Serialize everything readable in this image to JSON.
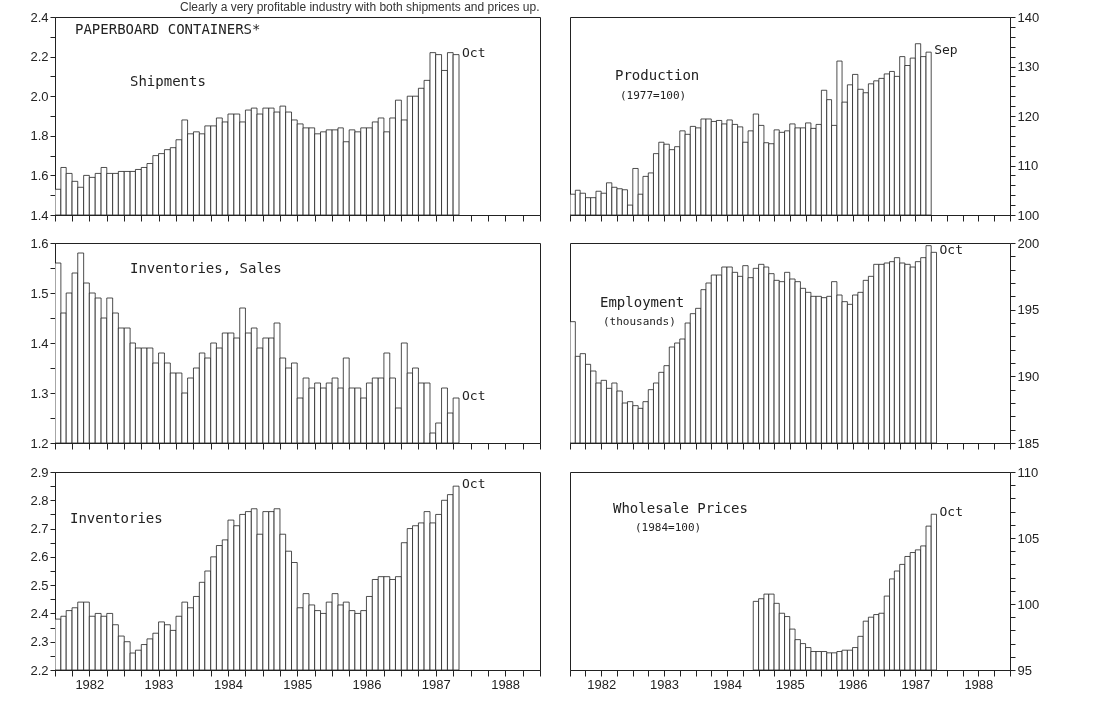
{
  "chart_data": [
    {
      "type": "bar",
      "title": "Shipments",
      "annotations": [
        "Clearly a very profitable industry with both shipments and prices up.",
        "PAPERBOARD CONTAINERS*",
        {
          "text": "Oct",
          "x": "1987-10",
          "y": 2.21
        }
      ],
      "color": "#ffffff",
      "x": [
        "1982-01",
        "1982-02",
        "1982-03",
        "1982-04",
        "1982-05",
        "1982-06",
        "1982-07",
        "1982-08",
        "1982-09",
        "1982-10",
        "1982-11",
        "1982-12",
        "1983-01",
        "1983-02",
        "1983-03",
        "1983-04",
        "1983-05",
        "1983-06",
        "1983-07",
        "1983-08",
        "1983-09",
        "1983-10",
        "1983-11",
        "1983-12",
        "1984-01",
        "1984-02",
        "1984-03",
        "1984-04",
        "1984-05",
        "1984-06",
        "1984-07",
        "1984-08",
        "1984-09",
        "1984-10",
        "1984-11",
        "1984-12",
        "1985-01",
        "1985-02",
        "1985-03",
        "1985-04",
        "1985-05",
        "1985-06",
        "1985-07",
        "1985-08",
        "1985-09",
        "1985-10",
        "1985-11",
        "1985-12",
        "1986-01",
        "1986-02",
        "1986-03",
        "1986-04",
        "1986-05",
        "1986-06",
        "1986-07",
        "1986-08",
        "1986-09",
        "1986-10",
        "1986-11",
        "1986-12",
        "1987-01",
        "1987-02",
        "1987-03",
        "1987-04",
        "1987-05",
        "1987-06",
        "1987-07",
        "1987-08",
        "1987-09",
        "1987-10"
      ],
      "values": [
        1.53,
        1.64,
        1.61,
        1.57,
        1.54,
        1.6,
        1.59,
        1.61,
        1.64,
        1.61,
        1.61,
        1.62,
        1.62,
        1.62,
        1.63,
        1.64,
        1.66,
        1.7,
        1.71,
        1.73,
        1.74,
        1.78,
        1.88,
        1.81,
        1.82,
        1.81,
        1.85,
        1.85,
        1.89,
        1.87,
        1.91,
        1.91,
        1.87,
        1.93,
        1.94,
        1.91,
        1.94,
        1.94,
        1.92,
        1.95,
        1.92,
        1.88,
        1.86,
        1.84,
        1.84,
        1.81,
        1.82,
        1.83,
        1.83,
        1.84,
        1.77,
        1.83,
        1.82,
        1.84,
        1.84,
        1.87,
        1.89,
        1.82,
        1.89,
        1.98,
        1.88,
        2.0,
        2.0,
        2.04,
        2.08,
        2.22,
        2.21,
        2.13,
        2.22,
        2.21
      ],
      "xlim": [
        "1982-01",
        "1989-01"
      ],
      "xticks": [
        {
          "value": "1982-01",
          "label": null
        },
        {
          "value": "1982-04",
          "label": null
        },
        {
          "value": "1982-07",
          "label": null
        },
        {
          "value": "1982-10",
          "label": null
        },
        {
          "value": "1983-01",
          "label": null
        },
        {
          "value": "1983-04",
          "label": null
        },
        {
          "value": "1983-07",
          "label": null
        },
        {
          "value": "1983-10",
          "label": null
        },
        {
          "value": "1984-01",
          "label": null
        },
        {
          "value": "1984-04",
          "label": null
        },
        {
          "value": "1984-07",
          "label": null
        },
        {
          "value": "1984-10",
          "label": null
        },
        {
          "value": "1985-01",
          "label": null
        },
        {
          "value": "1985-04",
          "label": null
        },
        {
          "value": "1985-07",
          "label": null
        },
        {
          "value": "1985-10",
          "label": null
        },
        {
          "value": "1986-01",
          "label": null
        },
        {
          "value": "1986-04",
          "label": null
        },
        {
          "value": "1986-07",
          "label": null
        },
        {
          "value": "1986-10",
          "label": null
        },
        {
          "value": "1987-01",
          "label": null
        },
        {
          "value": "1987-04",
          "label": null
        },
        {
          "value": "1987-07",
          "label": null
        },
        {
          "value": "1987-10",
          "label": null
        },
        {
          "value": "1988-01",
          "label": null
        },
        {
          "value": "1988-04",
          "label": null
        },
        {
          "value": "1988-07",
          "label": null
        },
        {
          "value": "1988-10",
          "label": null
        },
        {
          "value": "1989-01",
          "label": null
        }
      ],
      "ylim": [
        1.4,
        2.4
      ],
      "yticks": [
        1.4,
        {
          "value": 1.5,
          "label": null
        },
        1.6,
        {
          "value": 1.7,
          "label": null
        },
        1.8,
        {
          "value": 1.9,
          "label": null
        },
        {
          "value": 2,
          "label": "2.0"
        },
        {
          "value": 2.1,
          "label": null
        },
        2.2,
        {
          "value": 2.3,
          "label": null
        },
        2.4
      ],
      "tick_labels": "y"
    },
    {
      "type": "bar",
      "title": "Production",
      "subtitle": "(1977=100)",
      "annotations": [
        {
          "text": "Sep",
          "x": "1987-09",
          "y": 132.9
        }
      ],
      "color": "#ffffff",
      "x": [
        "1982-01",
        "1982-02",
        "1982-03",
        "1982-04",
        "1982-05",
        "1982-06",
        "1982-07",
        "1982-08",
        "1982-09",
        "1982-10",
        "1982-11",
        "1982-12",
        "1983-01",
        "1983-02",
        "1983-03",
        "1983-04",
        "1983-05",
        "1983-06",
        "1983-07",
        "1983-08",
        "1983-09",
        "1983-10",
        "1983-11",
        "1983-12",
        "1984-01",
        "1984-02",
        "1984-03",
        "1984-04",
        "1984-05",
        "1984-06",
        "1984-07",
        "1984-08",
        "1984-09",
        "1984-10",
        "1984-11",
        "1984-12",
        "1985-01",
        "1985-02",
        "1985-03",
        "1985-04",
        "1985-05",
        "1985-06",
        "1985-07",
        "1985-08",
        "1985-09",
        "1985-10",
        "1985-11",
        "1985-12",
        "1986-01",
        "1986-02",
        "1986-03",
        "1986-04",
        "1986-05",
        "1986-06",
        "1986-07",
        "1986-08",
        "1986-09",
        "1986-10",
        "1986-11",
        "1986-12",
        "1987-01",
        "1987-02",
        "1987-03",
        "1987-04",
        "1987-05",
        "1987-06",
        "1987-07",
        "1987-08",
        "1987-09"
      ],
      "values": [
        104.2,
        105.0,
        104.4,
        103.5,
        103.5,
        104.8,
        104.4,
        106.5,
        105.6,
        105.3,
        105.1,
        102.0,
        109.4,
        104.2,
        107.8,
        108.5,
        112.4,
        114.7,
        114.3,
        113.2,
        113.8,
        117.0,
        116.3,
        117.9,
        117.6,
        119.4,
        119.4,
        118.9,
        119.1,
        118.4,
        119.2,
        118.3,
        117.8,
        114.7,
        117.0,
        120.4,
        118.1,
        114.6,
        114.4,
        117.2,
        116.7,
        117.0,
        118.4,
        117.6,
        117.6,
        118.6,
        117.5,
        118.3,
        125.2,
        123.3,
        118.1,
        131.1,
        122.8,
        126.3,
        128.4,
        125.4,
        124.7,
        126.5,
        127.1,
        127.6,
        128.5,
        129.0,
        128.0,
        132.0,
        130.2,
        131.7,
        134.6,
        132.0,
        132.9
      ],
      "xlim": [
        "1982-01",
        "1989-01"
      ],
      "xticks": [
        {
          "value": "1982-01",
          "label": null
        },
        {
          "value": "1982-04",
          "label": null
        },
        {
          "value": "1982-07",
          "label": null
        },
        {
          "value": "1982-10",
          "label": null
        },
        {
          "value": "1983-01",
          "label": null
        },
        {
          "value": "1983-04",
          "label": null
        },
        {
          "value": "1983-07",
          "label": null
        },
        {
          "value": "1983-10",
          "label": null
        },
        {
          "value": "1984-01",
          "label": null
        },
        {
          "value": "1984-04",
          "label": null
        },
        {
          "value": "1984-07",
          "label": null
        },
        {
          "value": "1984-10",
          "label": null
        },
        {
          "value": "1985-01",
          "label": null
        },
        {
          "value": "1985-04",
          "label": null
        },
        {
          "value": "1985-07",
          "label": null
        },
        {
          "value": "1985-10",
          "label": null
        },
        {
          "value": "1986-01",
          "label": null
        },
        {
          "value": "1986-04",
          "label": null
        },
        {
          "value": "1986-07",
          "label": null
        },
        {
          "value": "1986-10",
          "label": null
        },
        {
          "value": "1987-01",
          "label": null
        },
        {
          "value": "1987-04",
          "label": null
        },
        {
          "value": "1987-07",
          "label": null
        },
        {
          "value": "1987-10",
          "label": null
        },
        {
          "value": "1988-01",
          "label": null
        },
        {
          "value": "1988-04",
          "label": null
        },
        {
          "value": "1988-07",
          "label": null
        },
        {
          "value": "1988-10",
          "label": null
        },
        {
          "value": "1989-01",
          "label": null
        }
      ],
      "ylim": [
        100,
        140
      ],
      "yticks": [
        100,
        {
          "value": 102,
          "label": null
        },
        {
          "value": 104,
          "label": null
        },
        {
          "value": 106,
          "label": null
        },
        {
          "value": 108,
          "label": null
        },
        110,
        {
          "value": 112,
          "label": null
        },
        {
          "value": 114,
          "label": null
        },
        {
          "value": 116,
          "label": null
        },
        {
          "value": 118,
          "label": null
        },
        120,
        {
          "value": 122,
          "label": null
        },
        {
          "value": 124,
          "label": null
        },
        {
          "value": 126,
          "label": null
        },
        {
          "value": 128,
          "label": null
        },
        130,
        {
          "value": 132,
          "label": null
        },
        {
          "value": 134,
          "label": null
        },
        {
          "value": 136,
          "label": null
        },
        {
          "value": 138,
          "label": null
        },
        140
      ],
      "tick_labels": "y"
    },
    {
      "type": "bar",
      "title": "Inventories, Sales",
      "annotations": [
        {
          "text": "Oct",
          "x": "1987-10",
          "y": 1.29
        }
      ],
      "color": "#ffffff",
      "x": [
        "1982-01",
        "1982-02",
        "1982-03",
        "1982-04",
        "1982-05",
        "1982-06",
        "1982-07",
        "1982-08",
        "1982-09",
        "1982-10",
        "1982-11",
        "1982-12",
        "1983-01",
        "1983-02",
        "1983-03",
        "1983-04",
        "1983-05",
        "1983-06",
        "1983-07",
        "1983-08",
        "1983-09",
        "1983-10",
        "1983-11",
        "1983-12",
        "1984-01",
        "1984-02",
        "1984-03",
        "1984-04",
        "1984-05",
        "1984-06",
        "1984-07",
        "1984-08",
        "1984-09",
        "1984-10",
        "1984-11",
        "1984-12",
        "1985-01",
        "1985-02",
        "1985-03",
        "1985-04",
        "1985-05",
        "1985-06",
        "1985-07",
        "1985-08",
        "1985-09",
        "1985-10",
        "1985-11",
        "1985-12",
        "1986-01",
        "1986-02",
        "1986-03",
        "1986-04",
        "1986-05",
        "1986-06",
        "1986-07",
        "1986-08",
        "1986-09",
        "1986-10",
        "1986-11",
        "1986-12",
        "1987-01",
        "1987-02",
        "1987-03",
        "1987-04",
        "1987-05",
        "1987-06",
        "1987-07",
        "1987-08",
        "1987-09",
        "1987-10"
      ],
      "values": [
        1.56,
        1.46,
        1.5,
        1.54,
        1.58,
        1.52,
        1.5,
        1.49,
        1.45,
        1.49,
        1.46,
        1.43,
        1.43,
        1.4,
        1.39,
        1.39,
        1.39,
        1.36,
        1.38,
        1.36,
        1.34,
        1.34,
        1.3,
        1.33,
        1.35,
        1.38,
        1.37,
        1.4,
        1.39,
        1.42,
        1.42,
        1.41,
        1.47,
        1.42,
        1.43,
        1.39,
        1.41,
        1.41,
        1.44,
        1.37,
        1.35,
        1.36,
        1.29,
        1.33,
        1.31,
        1.32,
        1.31,
        1.32,
        1.33,
        1.31,
        1.37,
        1.31,
        1.31,
        1.29,
        1.32,
        1.33,
        1.33,
        1.38,
        1.33,
        1.27,
        1.4,
        1.34,
        1.35,
        1.32,
        1.32,
        1.22,
        1.24,
        1.31,
        1.26,
        1.29
      ],
      "xlim": [
        "1982-01",
        "1989-01"
      ],
      "xticks": [
        {
          "value": "1982-01",
          "label": null
        },
        {
          "value": "1982-04",
          "label": null
        },
        {
          "value": "1982-07",
          "label": null
        },
        {
          "value": "1982-10",
          "label": null
        },
        {
          "value": "1983-01",
          "label": null
        },
        {
          "value": "1983-04",
          "label": null
        },
        {
          "value": "1983-07",
          "label": null
        },
        {
          "value": "1983-10",
          "label": null
        },
        {
          "value": "1984-01",
          "label": null
        },
        {
          "value": "1984-04",
          "label": null
        },
        {
          "value": "1984-07",
          "label": null
        },
        {
          "value": "1984-10",
          "label": null
        },
        {
          "value": "1985-01",
          "label": null
        },
        {
          "value": "1985-04",
          "label": null
        },
        {
          "value": "1985-07",
          "label": null
        },
        {
          "value": "1985-10",
          "label": null
        },
        {
          "value": "1986-01",
          "label": null
        },
        {
          "value": "1986-04",
          "label": null
        },
        {
          "value": "1986-07",
          "label": null
        },
        {
          "value": "1986-10",
          "label": null
        },
        {
          "value": "1987-01",
          "label": null
        },
        {
          "value": "1987-04",
          "label": null
        },
        {
          "value": "1987-07",
          "label": null
        },
        {
          "value": "1987-10",
          "label": null
        },
        {
          "value": "1988-01",
          "label": null
        },
        {
          "value": "1988-04",
          "label": null
        },
        {
          "value": "1988-07",
          "label": null
        },
        {
          "value": "1988-10",
          "label": null
        },
        {
          "value": "1989-01",
          "label": null
        }
      ],
      "ylim": [
        1.2,
        1.6
      ],
      "yticks": [
        1.2,
        {
          "value": 1.25,
          "label": null
        },
        1.3,
        {
          "value": 1.35,
          "label": null
        },
        1.4,
        {
          "value": 1.45,
          "label": null
        },
        1.5,
        {
          "value": 1.55,
          "label": null
        },
        1.6
      ],
      "tick_labels": "y"
    },
    {
      "type": "bar",
      "title": "Employment",
      "subtitle": "(thousands)",
      "annotations": [
        {
          "text": "Oct",
          "x": "1987-10",
          "y": 199.3
        }
      ],
      "color": "#ffffff",
      "x": [
        "1982-01",
        "1982-02",
        "1982-03",
        "1982-04",
        "1982-05",
        "1982-06",
        "1982-07",
        "1982-08",
        "1982-09",
        "1982-10",
        "1982-11",
        "1982-12",
        "1983-01",
        "1983-02",
        "1983-03",
        "1983-04",
        "1983-05",
        "1983-06",
        "1983-07",
        "1983-08",
        "1983-09",
        "1983-10",
        "1983-11",
        "1983-12",
        "1984-01",
        "1984-02",
        "1984-03",
        "1984-04",
        "1984-05",
        "1984-06",
        "1984-07",
        "1984-08",
        "1984-09",
        "1984-10",
        "1984-11",
        "1984-12",
        "1985-01",
        "1985-02",
        "1985-03",
        "1985-04",
        "1985-05",
        "1985-06",
        "1985-07",
        "1985-08",
        "1985-09",
        "1985-10",
        "1985-11",
        "1985-12",
        "1986-01",
        "1986-02",
        "1986-03",
        "1986-04",
        "1986-05",
        "1986-06",
        "1986-07",
        "1986-08",
        "1986-09",
        "1986-10",
        "1986-11",
        "1986-12",
        "1987-01",
        "1987-02",
        "1987-03",
        "1987-04",
        "1987-05",
        "1987-06",
        "1987-07",
        "1987-08",
        "1987-09",
        "1987-10"
      ],
      "values": [
        194.1,
        191.5,
        191.7,
        190.9,
        190.4,
        189.5,
        189.7,
        189.1,
        189.5,
        188.9,
        188.0,
        188.1,
        187.8,
        187.6,
        188.1,
        189.0,
        189.5,
        190.3,
        190.8,
        192.2,
        192.5,
        192.8,
        194.0,
        194.7,
        195.1,
        196.5,
        197.0,
        197.6,
        197.6,
        198.2,
        198.2,
        197.8,
        197.5,
        198.3,
        197.4,
        198.1,
        198.4,
        198.2,
        197.7,
        197.2,
        197.1,
        197.8,
        197.3,
        197.1,
        196.6,
        196.3,
        196.0,
        196.0,
        195.9,
        196.0,
        197.1,
        196.1,
        195.6,
        195.4,
        196.1,
        196.3,
        197.2,
        197.5,
        198.4,
        198.4,
        198.5,
        198.6,
        198.9,
        198.5,
        198.4,
        198.2,
        198.6,
        198.9,
        199.8,
        199.3
      ],
      "xlim": [
        "1982-01",
        "1989-01"
      ],
      "xticks": [
        {
          "value": "1982-01",
          "label": null
        },
        {
          "value": "1982-04",
          "label": null
        },
        {
          "value": "1982-07",
          "label": null
        },
        {
          "value": "1982-10",
          "label": null
        },
        {
          "value": "1983-01",
          "label": null
        },
        {
          "value": "1983-04",
          "label": null
        },
        {
          "value": "1983-07",
          "label": null
        },
        {
          "value": "1983-10",
          "label": null
        },
        {
          "value": "1984-01",
          "label": null
        },
        {
          "value": "1984-04",
          "label": null
        },
        {
          "value": "1984-07",
          "label": null
        },
        {
          "value": "1984-10",
          "label": null
        },
        {
          "value": "1985-01",
          "label": null
        },
        {
          "value": "1985-04",
          "label": null
        },
        {
          "value": "1985-07",
          "label": null
        },
        {
          "value": "1985-10",
          "label": null
        },
        {
          "value": "1986-01",
          "label": null
        },
        {
          "value": "1986-04",
          "label": null
        },
        {
          "value": "1986-07",
          "label": null
        },
        {
          "value": "1986-10",
          "label": null
        },
        {
          "value": "1987-01",
          "label": null
        },
        {
          "value": "1987-04",
          "label": null
        },
        {
          "value": "1987-07",
          "label": null
        },
        {
          "value": "1987-10",
          "label": null
        },
        {
          "value": "1988-01",
          "label": null
        },
        {
          "value": "1988-04",
          "label": null
        },
        {
          "value": "1988-07",
          "label": null
        },
        {
          "value": "1988-10",
          "label": null
        },
        {
          "value": "1989-01",
          "label": null
        }
      ],
      "ylim": [
        185,
        200
      ],
      "yticks": [
        185,
        {
          "value": 186,
          "label": null
        },
        {
          "value": 187,
          "label": null
        },
        {
          "value": 188,
          "label": null
        },
        {
          "value": 189,
          "label": null
        },
        190,
        {
          "value": 191,
          "label": null
        },
        {
          "value": 192,
          "label": null
        },
        {
          "value": 193,
          "label": null
        },
        {
          "value": 194,
          "label": null
        },
        195,
        {
          "value": 196,
          "label": null
        },
        {
          "value": 197,
          "label": null
        },
        {
          "value": 198,
          "label": null
        },
        {
          "value": 199,
          "label": null
        },
        200
      ],
      "tick_labels": "y"
    },
    {
      "type": "bar",
      "title": "Inventories",
      "annotations": [
        {
          "text": "Oct",
          "x": "1987-10",
          "y": 2.85
        }
      ],
      "color": "#ffffff",
      "x": [
        "1982-01",
        "1982-02",
        "1982-03",
        "1982-04",
        "1982-05",
        "1982-06",
        "1982-07",
        "1982-08",
        "1982-09",
        "1982-10",
        "1982-11",
        "1982-12",
        "1983-01",
        "1983-02",
        "1983-03",
        "1983-04",
        "1983-05",
        "1983-06",
        "1983-07",
        "1983-08",
        "1983-09",
        "1983-10",
        "1983-11",
        "1983-12",
        "1984-01",
        "1984-02",
        "1984-03",
        "1984-04",
        "1984-05",
        "1984-06",
        "1984-07",
        "1984-08",
        "1984-09",
        "1984-10",
        "1984-11",
        "1984-12",
        "1985-01",
        "1985-02",
        "1985-03",
        "1985-04",
        "1985-05",
        "1985-06",
        "1985-07",
        "1985-08",
        "1985-09",
        "1985-10",
        "1985-11",
        "1985-12",
        "1986-01",
        "1986-02",
        "1986-03",
        "1986-04",
        "1986-05",
        "1986-06",
        "1986-07",
        "1986-08",
        "1986-09",
        "1986-10",
        "1986-11",
        "1986-12",
        "1987-01",
        "1987-02",
        "1987-03",
        "1987-04",
        "1987-05",
        "1987-06",
        "1987-07",
        "1987-08",
        "1987-09",
        "1987-10"
      ],
      "values": [
        2.38,
        2.39,
        2.41,
        2.42,
        2.44,
        2.44,
        2.39,
        2.4,
        2.39,
        2.4,
        2.36,
        2.32,
        2.3,
        2.26,
        2.27,
        2.29,
        2.31,
        2.33,
        2.37,
        2.36,
        2.34,
        2.39,
        2.44,
        2.42,
        2.46,
        2.51,
        2.55,
        2.6,
        2.64,
        2.66,
        2.73,
        2.71,
        2.75,
        2.76,
        2.77,
        2.68,
        2.76,
        2.76,
        2.77,
        2.68,
        2.62,
        2.58,
        2.42,
        2.47,
        2.43,
        2.41,
        2.4,
        2.44,
        2.47,
        2.43,
        2.44,
        2.41,
        2.4,
        2.41,
        2.46,
        2.52,
        2.53,
        2.53,
        2.52,
        2.53,
        2.65,
        2.7,
        2.71,
        2.72,
        2.76,
        2.72,
        2.75,
        2.8,
        2.82,
        2.85
      ],
      "xlim": [
        "1982-01",
        "1989-01"
      ],
      "xticks": [
        {
          "value": "1982-01",
          "label": null
        },
        {
          "value": "1982-04",
          "label": null
        },
        {
          "value": "1982-07",
          "label": "1982"
        },
        {
          "value": "1982-10",
          "label": null
        },
        {
          "value": "1983-01",
          "label": null
        },
        {
          "value": "1983-04",
          "label": null
        },
        {
          "value": "1983-07",
          "label": "1983"
        },
        {
          "value": "1983-10",
          "label": null
        },
        {
          "value": "1984-01",
          "label": null
        },
        {
          "value": "1984-04",
          "label": null
        },
        {
          "value": "1984-07",
          "label": "1984"
        },
        {
          "value": "1984-10",
          "label": null
        },
        {
          "value": "1985-01",
          "label": null
        },
        {
          "value": "1985-04",
          "label": null
        },
        {
          "value": "1985-07",
          "label": "1985"
        },
        {
          "value": "1985-10",
          "label": null
        },
        {
          "value": "1986-01",
          "label": null
        },
        {
          "value": "1986-04",
          "label": null
        },
        {
          "value": "1986-07",
          "label": "1986"
        },
        {
          "value": "1986-10",
          "label": null
        },
        {
          "value": "1987-01",
          "label": null
        },
        {
          "value": "1987-04",
          "label": null
        },
        {
          "value": "1987-07",
          "label": "1987"
        },
        {
          "value": "1987-10",
          "label": null
        },
        {
          "value": "1988-01",
          "label": null
        },
        {
          "value": "1988-04",
          "label": null
        },
        {
          "value": "1988-07",
          "label": "1988"
        },
        {
          "value": "1988-10",
          "label": null
        },
        {
          "value": "1989-01",
          "label": null
        }
      ],
      "ylim": [
        2.2,
        2.9
      ],
      "yticks": [
        2.2,
        {
          "value": 2.25,
          "label": null
        },
        2.3,
        {
          "value": 2.35,
          "label": null
        },
        2.4,
        {
          "value": 2.45,
          "label": null
        },
        2.5,
        {
          "value": 2.55,
          "label": null
        },
        2.6,
        {
          "value": 2.65,
          "label": null
        },
        2.7,
        {
          "value": 2.75,
          "label": null
        },
        2.8,
        {
          "value": 2.85,
          "label": null
        },
        2.9
      ]
    },
    {
      "type": "bar",
      "title": "Wholesale Prices",
      "subtitle": "(1984=100)",
      "annotations": [
        {
          "text": "Oct",
          "x": "1987-10",
          "y": 106.8
        }
      ],
      "color": "#ffffff",
      "x": [
        "1984-12",
        "1985-01",
        "1985-02",
        "1985-03",
        "1985-04",
        "1985-05",
        "1985-06",
        "1985-07",
        "1985-08",
        "1985-09",
        "1985-10",
        "1985-11",
        "1985-12",
        "1986-01",
        "1986-02",
        "1986-03",
        "1986-04",
        "1986-05",
        "1986-06",
        "1986-07",
        "1986-08",
        "1986-09",
        "1986-10",
        "1986-11",
        "1986-12",
        "1987-01",
        "1987-02",
        "1987-03",
        "1987-04",
        "1987-05",
        "1987-06",
        "1987-07",
        "1987-08",
        "1987-09",
        "1987-10"
      ],
      "values": [
        100.2,
        100.4,
        100.75,
        100.75,
        100.05,
        99.3,
        99.05,
        98.1,
        97.3,
        97.0,
        96.7,
        96.4,
        96.4,
        96.4,
        96.3,
        96.3,
        96.4,
        96.5,
        96.5,
        96.7,
        97.55,
        98.7,
        99.0,
        99.2,
        99.3,
        100.6,
        101.9,
        102.5,
        103.0,
        103.6,
        103.9,
        104.1,
        104.4,
        105.9,
        106.8
      ],
      "xlim": [
        "1982-01",
        "1989-01"
      ],
      "xticks": [
        {
          "value": "1982-01",
          "label": null
        },
        {
          "value": "1982-04",
          "label": null
        },
        {
          "value": "1982-07",
          "label": "1982"
        },
        {
          "value": "1982-10",
          "label": null
        },
        {
          "value": "1983-01",
          "label": null
        },
        {
          "value": "1983-04",
          "label": null
        },
        {
          "value": "1983-07",
          "label": "1983"
        },
        {
          "value": "1983-10",
          "label": null
        },
        {
          "value": "1984-01",
          "label": null
        },
        {
          "value": "1984-04",
          "label": null
        },
        {
          "value": "1984-07",
          "label": "1984"
        },
        {
          "value": "1984-10",
          "label": null
        },
        {
          "value": "1985-01",
          "label": null
        },
        {
          "value": "1985-04",
          "label": null
        },
        {
          "value": "1985-07",
          "label": "1985"
        },
        {
          "value": "1985-10",
          "label": null
        },
        {
          "value": "1986-01",
          "label": null
        },
        {
          "value": "1986-04",
          "label": null
        },
        {
          "value": "1986-07",
          "label": "1986"
        },
        {
          "value": "1986-10",
          "label": null
        },
        {
          "value": "1987-01",
          "label": null
        },
        {
          "value": "1987-04",
          "label": null
        },
        {
          "value": "1987-07",
          "label": "1987"
        },
        {
          "value": "1987-10",
          "label": null
        },
        {
          "value": "1988-01",
          "label": null
        },
        {
          "value": "1988-04",
          "label": null
        },
        {
          "value": "1988-07",
          "label": "1988"
        },
        {
          "value": "1988-10",
          "label": null
        },
        {
          "value": "1989-01",
          "label": null
        }
      ],
      "ylim": [
        95,
        110
      ],
      "yticks": [
        95,
        {
          "value": 96,
          "label": null
        },
        {
          "value": 97,
          "label": null
        },
        {
          "value": 98,
          "label": null
        },
        {
          "value": 99,
          "label": null
        },
        100,
        {
          "value": 101,
          "label": null
        },
        {
          "value": 102,
          "label": null
        },
        {
          "value": 103,
          "label": null
        },
        {
          "value": 104,
          "label": null
        },
        105,
        {
          "value": 106,
          "label": null
        },
        {
          "value": 107,
          "label": null
        },
        {
          "value": 108,
          "label": null
        },
        {
          "value": 109,
          "label": null
        },
        110
      ]
    }
  ]
}
